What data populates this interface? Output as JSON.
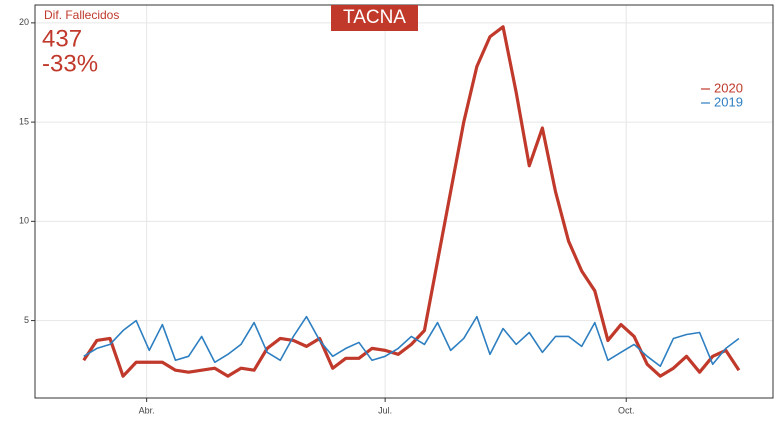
{
  "chart_data": {
    "type": "line",
    "title": "TACNA",
    "annotation": {
      "label": "Dif. Fallecidos",
      "difference": "437",
      "change": "-33%"
    },
    "x": [
      67,
      72,
      77,
      82,
      87,
      92,
      97,
      102,
      107,
      112,
      117,
      122,
      127,
      132,
      137,
      142,
      147,
      152,
      157,
      162,
      167,
      172,
      177,
      182,
      187,
      192,
      197,
      202,
      207,
      212,
      217,
      222,
      227,
      232,
      237,
      242,
      247,
      252,
      257,
      262,
      267,
      272,
      277,
      282,
      287,
      292,
      297,
      302,
      307,
      312,
      317
    ],
    "series": [
      {
        "name": "2020",
        "color": "#c0392b",
        "values": [
          3.0,
          4.0,
          4.1,
          2.2,
          2.9,
          2.9,
          2.9,
          2.5,
          2.4,
          2.5,
          2.6,
          2.2,
          2.6,
          2.5,
          3.6,
          4.1,
          4.0,
          3.7,
          4.1,
          2.6,
          3.1,
          3.1,
          3.6,
          3.5,
          3.3,
          3.8,
          4.5,
          8.0,
          11.5,
          15.0,
          17.8,
          19.3,
          19.8,
          16.5,
          12.8,
          14.7,
          11.5,
          9.0,
          7.5,
          6.5,
          4.0,
          4.8,
          4.2,
          2.8,
          2.2,
          2.6,
          3.2,
          2.4,
          3.2,
          3.5,
          2.5
        ]
      },
      {
        "name": "2019",
        "color": "#2e7fc1",
        "values": [
          3.2,
          3.6,
          3.8,
          4.5,
          5.0,
          3.5,
          4.8,
          3.0,
          3.2,
          4.2,
          2.9,
          3.3,
          3.8,
          4.9,
          3.4,
          3.0,
          4.2,
          5.2,
          4.0,
          3.2,
          3.6,
          3.9,
          3.0,
          3.2,
          3.6,
          4.2,
          3.8,
          4.9,
          3.5,
          4.1,
          5.2,
          3.3,
          4.6,
          3.8,
          4.4,
          3.4,
          4.2,
          4.2,
          3.7,
          4.9,
          3.0,
          3.4,
          3.8,
          3.2,
          2.7,
          4.1,
          4.3,
          4.4,
          2.8,
          3.6,
          4.1
        ]
      }
    ],
    "xlim": [
      48.4,
      330
    ],
    "xticks": [
      {
        "value": 91,
        "label": "Abr."
      },
      {
        "value": 182,
        "label": "Jul."
      },
      {
        "value": 274,
        "label": "Oct."
      }
    ],
    "ylim": [
      1.1,
      20.9
    ],
    "yticks": [
      5,
      10,
      15,
      20
    ],
    "grid": true
  }
}
